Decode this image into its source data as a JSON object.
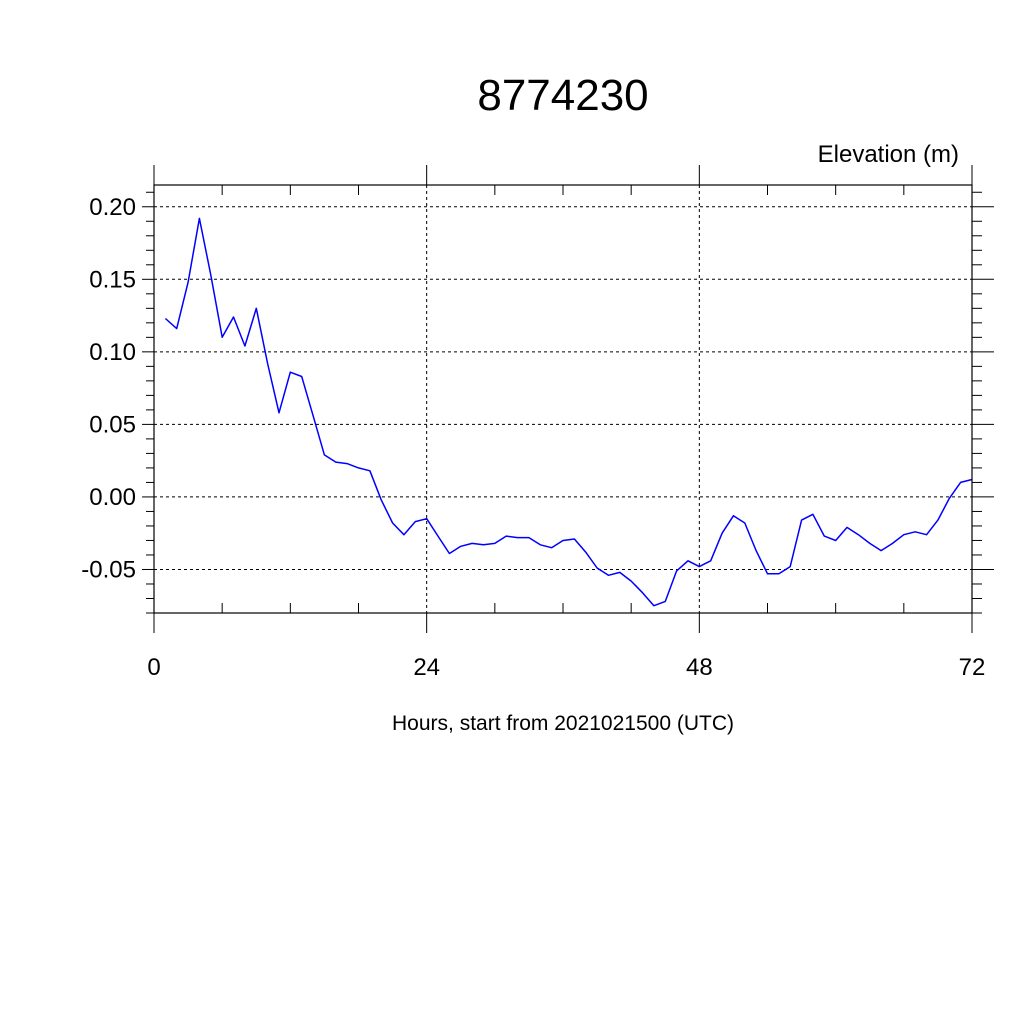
{
  "chart_data": {
    "type": "line",
    "title": "8774230",
    "ylabel": "Elevation (m)",
    "xlabel": "Hours, start from 2021021500 (UTC)",
    "xlim": [
      0,
      72
    ],
    "ylim": [
      -0.08,
      0.215
    ],
    "x_ticks": [
      0,
      24,
      48,
      72
    ],
    "x_tick_labels": [
      "0",
      "24",
      "48",
      "72"
    ],
    "y_ticks": [
      0.2,
      0.15,
      0.1,
      0.05,
      0.0,
      -0.05
    ],
    "y_tick_labels": [
      "0.20",
      "0.15",
      "0.10",
      "0.05",
      "0.00",
      "-0.05"
    ],
    "grid": true,
    "line_color": "#0000ff",
    "series": [
      {
        "x": [
          1,
          2,
          3,
          4,
          5,
          6,
          7,
          8,
          9,
          10,
          11,
          12,
          13,
          14,
          15,
          16,
          17,
          18,
          19,
          20,
          21,
          22,
          23,
          24,
          25,
          26,
          27,
          28,
          29,
          30,
          31,
          32,
          33,
          34,
          35,
          36,
          37,
          38,
          39,
          40,
          41,
          42,
          43,
          44,
          45,
          46,
          47,
          48,
          49,
          50,
          51,
          52,
          53,
          54,
          55,
          56,
          57,
          58,
          59,
          60,
          61,
          62,
          63,
          64,
          65,
          66,
          67,
          68,
          69,
          70,
          71,
          72
        ],
        "values": [
          0.123,
          0.116,
          0.148,
          0.192,
          0.153,
          0.11,
          0.124,
          0.104,
          0.13,
          0.092,
          0.058,
          0.086,
          0.083,
          0.056,
          0.029,
          0.024,
          0.023,
          0.02,
          0.018,
          -0.002,
          -0.018,
          -0.026,
          -0.017,
          -0.015,
          -0.027,
          -0.039,
          -0.034,
          -0.032,
          -0.033,
          -0.032,
          -0.027,
          -0.028,
          -0.028,
          -0.033,
          -0.035,
          -0.03,
          -0.029,
          -0.038,
          -0.049,
          -0.054,
          -0.052,
          -0.058,
          -0.066,
          -0.075,
          -0.072,
          -0.051,
          -0.044,
          -0.048,
          -0.044,
          -0.025,
          -0.013,
          -0.018,
          -0.037,
          -0.053,
          -0.053,
          -0.048,
          -0.016,
          -0.012,
          -0.027,
          -0.03,
          -0.021,
          -0.026,
          -0.032,
          -0.037,
          -0.032,
          -0.026,
          -0.024,
          -0.026,
          -0.016,
          -0.001,
          0.01,
          0.012
        ]
      }
    ]
  }
}
